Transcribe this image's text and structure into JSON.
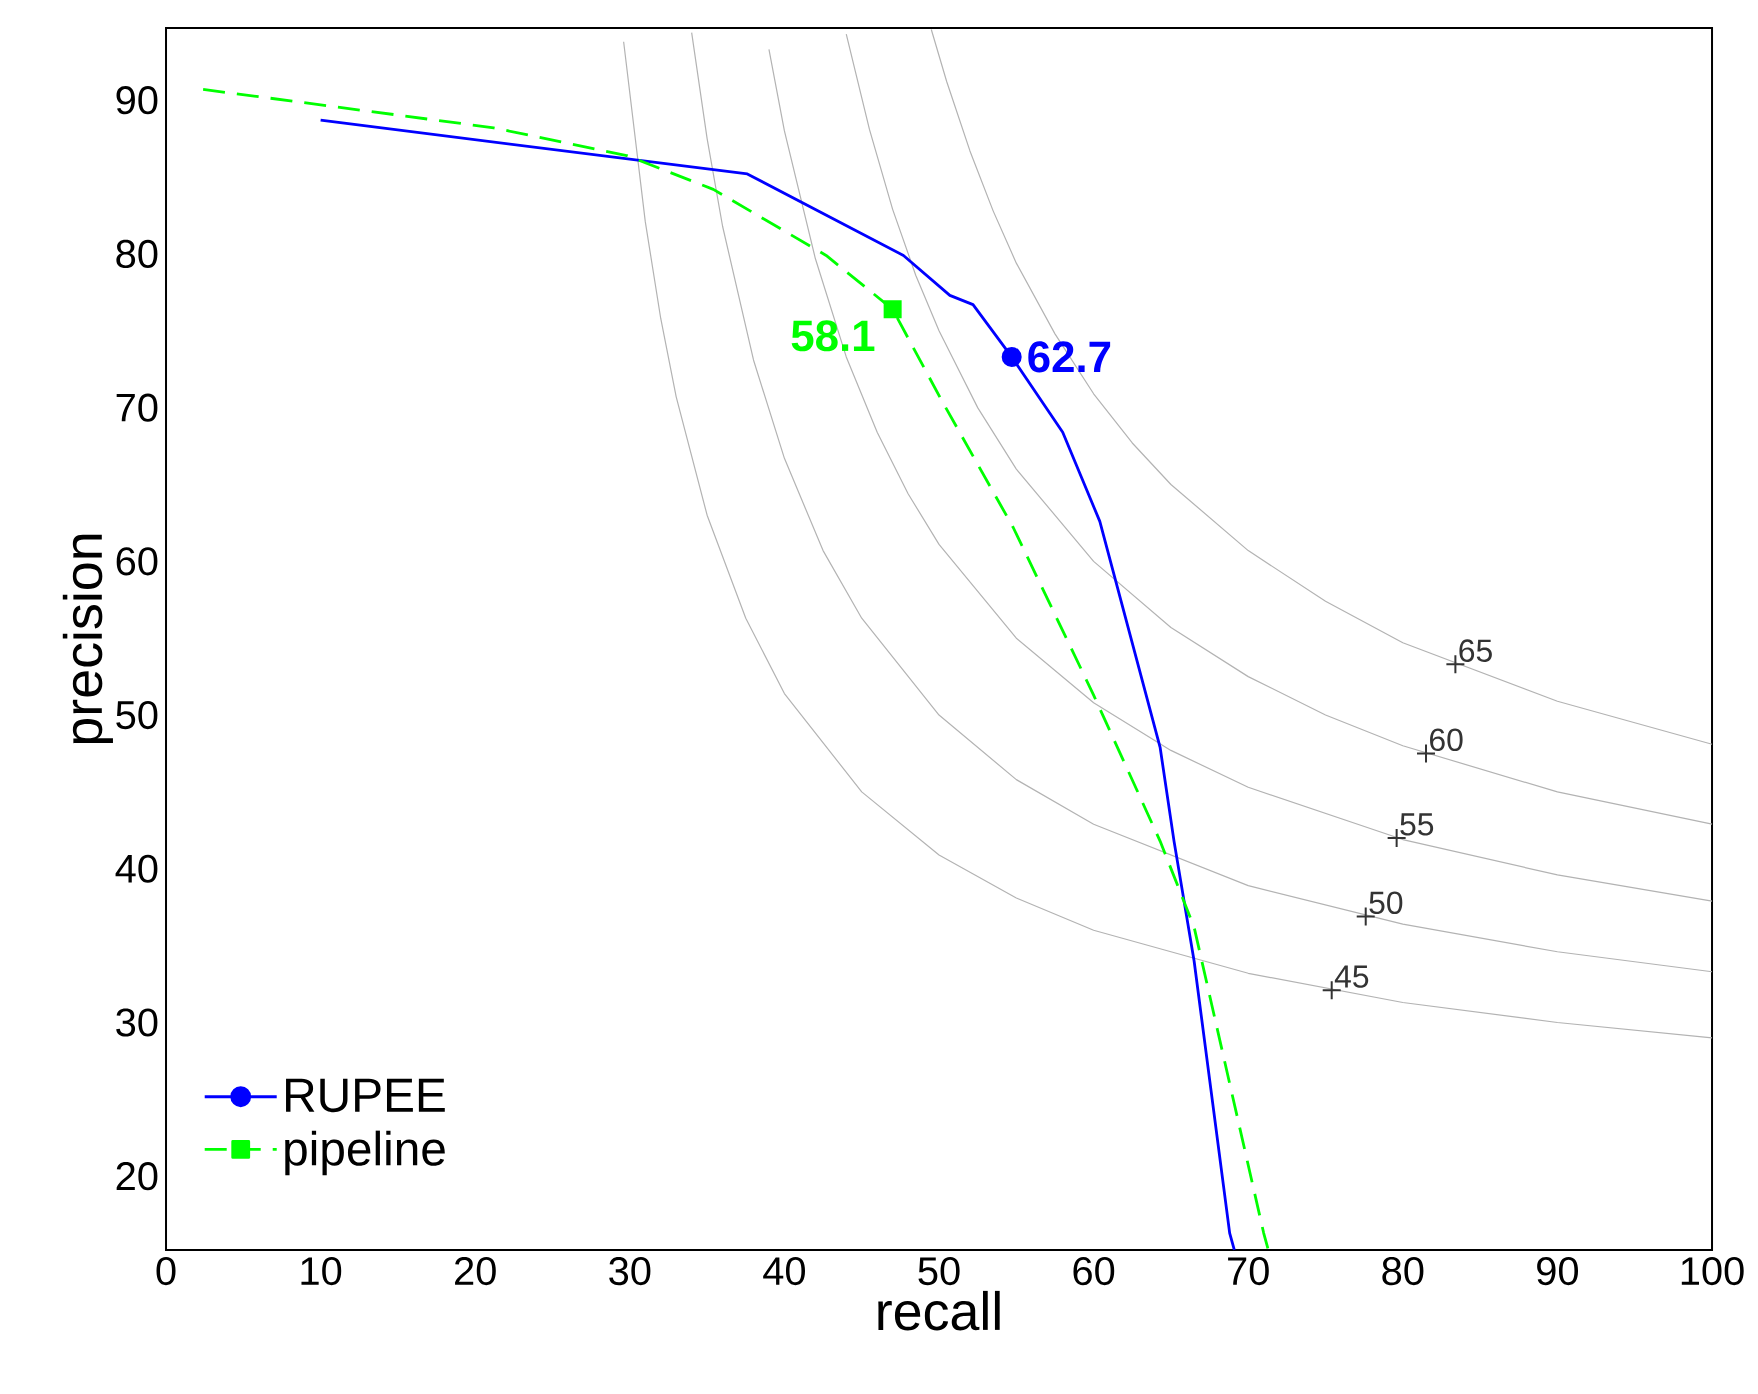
{
  "chart_data": {
    "type": "line",
    "xlabel": "recall",
    "ylabel": "precision",
    "xlim": [
      0,
      100
    ],
    "ylim": [
      15.2,
      94.7
    ],
    "xticks": [
      0,
      10,
      20,
      30,
      40,
      50,
      60,
      70,
      80,
      90,
      100
    ],
    "yticks": [
      20,
      30,
      40,
      50,
      60,
      70,
      80,
      90
    ],
    "legend": "bottom left",
    "series": [
      {
        "color": "#b3b3b3",
        "line_style": "solid",
        "x": [
          29.6,
          31,
          32,
          33,
          35,
          37.5,
          40,
          45,
          50,
          55,
          60,
          70,
          80,
          90,
          100
        ],
        "values": [
          93.8,
          82.1,
          75.8,
          70.7,
          63,
          56.3,
          51.4,
          45,
          40.9,
          38.1,
          36,
          33.2,
          31.3,
          30,
          29.0
        ]
      },
      {
        "color": "#b3b3b3",
        "line_style": "solid",
        "x": [
          34,
          35,
          36,
          38,
          40,
          42.5,
          45,
          50,
          55,
          60,
          70,
          80,
          90,
          100
        ],
        "values": [
          94.4,
          87.5,
          81.8,
          73.1,
          66.7,
          60.7,
          56.3,
          50,
          45.8,
          42.9,
          38.9,
          36.4,
          34.6,
          33.3
        ]
      },
      {
        "color": "#b3b3b3",
        "line_style": "solid",
        "x": [
          39,
          40,
          42,
          44,
          46,
          48,
          50,
          55,
          60,
          65,
          70,
          80,
          90,
          100
        ],
        "values": [
          93.3,
          88,
          79.7,
          73.3,
          68.4,
          64.4,
          61.1,
          55,
          50.8,
          47.7,
          45.3,
          41.9,
          39.6,
          37.9
        ]
      },
      {
        "color": "#b3b3b3",
        "line_style": "solid",
        "x": [
          44,
          45.5,
          47,
          48.5,
          50,
          52.5,
          55,
          60,
          65,
          70,
          75,
          80,
          90,
          100
        ],
        "values": [
          94.3,
          88.1,
          82.9,
          78.6,
          75,
          70,
          66,
          60,
          55.7,
          52.5,
          50,
          48,
          45,
          42.9
        ]
      },
      {
        "color": "#b3b3b3",
        "line_style": "solid",
        "x": [
          49.5,
          50.5,
          52,
          53.5,
          55,
          57.5,
          60,
          62.5,
          65,
          70,
          75,
          80,
          90,
          100
        ],
        "values": [
          94.6,
          91.2,
          86.7,
          82.8,
          79.4,
          74.8,
          70.9,
          67.7,
          65,
          60.7,
          57.4,
          54.7,
          50.9,
          48.1
        ]
      },
      {
        "type": "scatter",
        "color": "#333333",
        "marker": "cross",
        "x": [
          75.4,
          77.6,
          79.6,
          81.5,
          83.4
        ],
        "values": [
          32.1,
          36.9,
          42.0,
          47.5,
          53.3
        ]
      },
      {
        "name": "RUPEE",
        "color": "#0000ff",
        "line_style": "solid",
        "x": [
          10.0,
          37.6,
          47.7,
          50.7,
          52.2,
          54.7,
          58.0,
          60.4,
          64.3,
          65.2,
          66.5,
          68.8,
          69.1
        ],
        "values": [
          88.7,
          85.2,
          79.9,
          77.3,
          76.7,
          73.3,
          68.4,
          62.6,
          47.9,
          41.8,
          34.0,
          16.3,
          15.2
        ]
      },
      {
        "name": "pipeline",
        "color": "#00ff00",
        "line_style": "dashed",
        "x": [
          2.4,
          10.0,
          21.2,
          29.8,
          35.4,
          42.7,
          47.0,
          50.1,
          54.8,
          60.0,
          64.3,
          66.5,
          71.0,
          71.3
        ],
        "values": [
          90.7,
          89.7,
          88.2,
          86.4,
          84.2,
          79.9,
          76.4,
          70.6,
          62.2,
          51.3,
          41.8,
          36.2,
          16.3,
          15.2
        ]
      },
      {
        "type": "scatter",
        "color": "#0000ff",
        "marker": "circle",
        "x": [
          54.7
        ],
        "values": [
          73.3
        ]
      },
      {
        "type": "scatter",
        "color": "#00ff00",
        "marker": "square",
        "x": [
          47.0
        ],
        "values": [
          76.4
        ]
      }
    ],
    "annotations": [
      {
        "text": "45",
        "x": 75.4,
        "y": 32.1
      },
      {
        "text": "50",
        "x": 77.6,
        "y": 36.9
      },
      {
        "text": "55",
        "x": 79.6,
        "y": 42.0
      },
      {
        "text": "60",
        "x": 81.5,
        "y": 47.5
      },
      {
        "text": "65",
        "x": 83.4,
        "y": 53.3
      },
      {
        "text": "62.7",
        "x": 54.7,
        "y": 73.3
      },
      {
        "text": "58.1",
        "x": 47.0,
        "y": 76.4
      }
    ]
  }
}
